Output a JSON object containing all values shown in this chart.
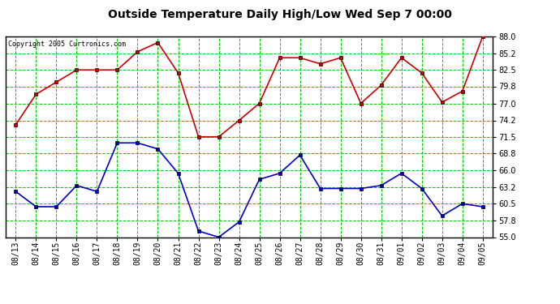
{
  "title": "Outside Temperature Daily High/Low Wed Sep 7 00:00",
  "copyright": "Copyright 2005 Curtronics.com",
  "labels": [
    "08/13",
    "08/14",
    "08/15",
    "08/16",
    "08/17",
    "08/18",
    "08/19",
    "08/20",
    "08/21",
    "08/22",
    "08/23",
    "08/24",
    "08/25",
    "08/26",
    "08/27",
    "08/28",
    "08/29",
    "08/30",
    "08/31",
    "09/01",
    "09/02",
    "09/03",
    "09/04",
    "09/05"
  ],
  "high": [
    73.5,
    78.5,
    80.5,
    82.5,
    82.5,
    82.5,
    85.5,
    87.0,
    82.0,
    71.5,
    71.5,
    74.2,
    77.0,
    84.5,
    84.5,
    83.5,
    84.5,
    77.0,
    80.0,
    84.5,
    82.0,
    77.2,
    79.0,
    88.0
  ],
  "low": [
    62.5,
    60.0,
    60.0,
    63.5,
    62.5,
    70.5,
    70.5,
    69.5,
    65.5,
    56.0,
    55.0,
    57.5,
    64.5,
    65.5,
    68.5,
    63.0,
    63.0,
    63.0,
    63.5,
    65.5,
    63.0,
    58.5,
    60.5,
    60.0
  ],
  "high_color": "#cc0000",
  "low_color": "#0000cc",
  "bg_color": "#ffffff",
  "plot_bg_color": "#ffffff",
  "grid_color": "#00cc00",
  "title_color": "#000000",
  "ylim": [
    55.0,
    88.0
  ],
  "yticks": [
    55.0,
    57.8,
    60.5,
    63.2,
    66.0,
    68.8,
    71.5,
    74.2,
    77.0,
    79.8,
    82.5,
    85.2,
    88.0
  ],
  "marker": "s",
  "markersize": 3,
  "linewidth": 1.2,
  "title_fontsize": 10,
  "tick_fontsize": 7
}
